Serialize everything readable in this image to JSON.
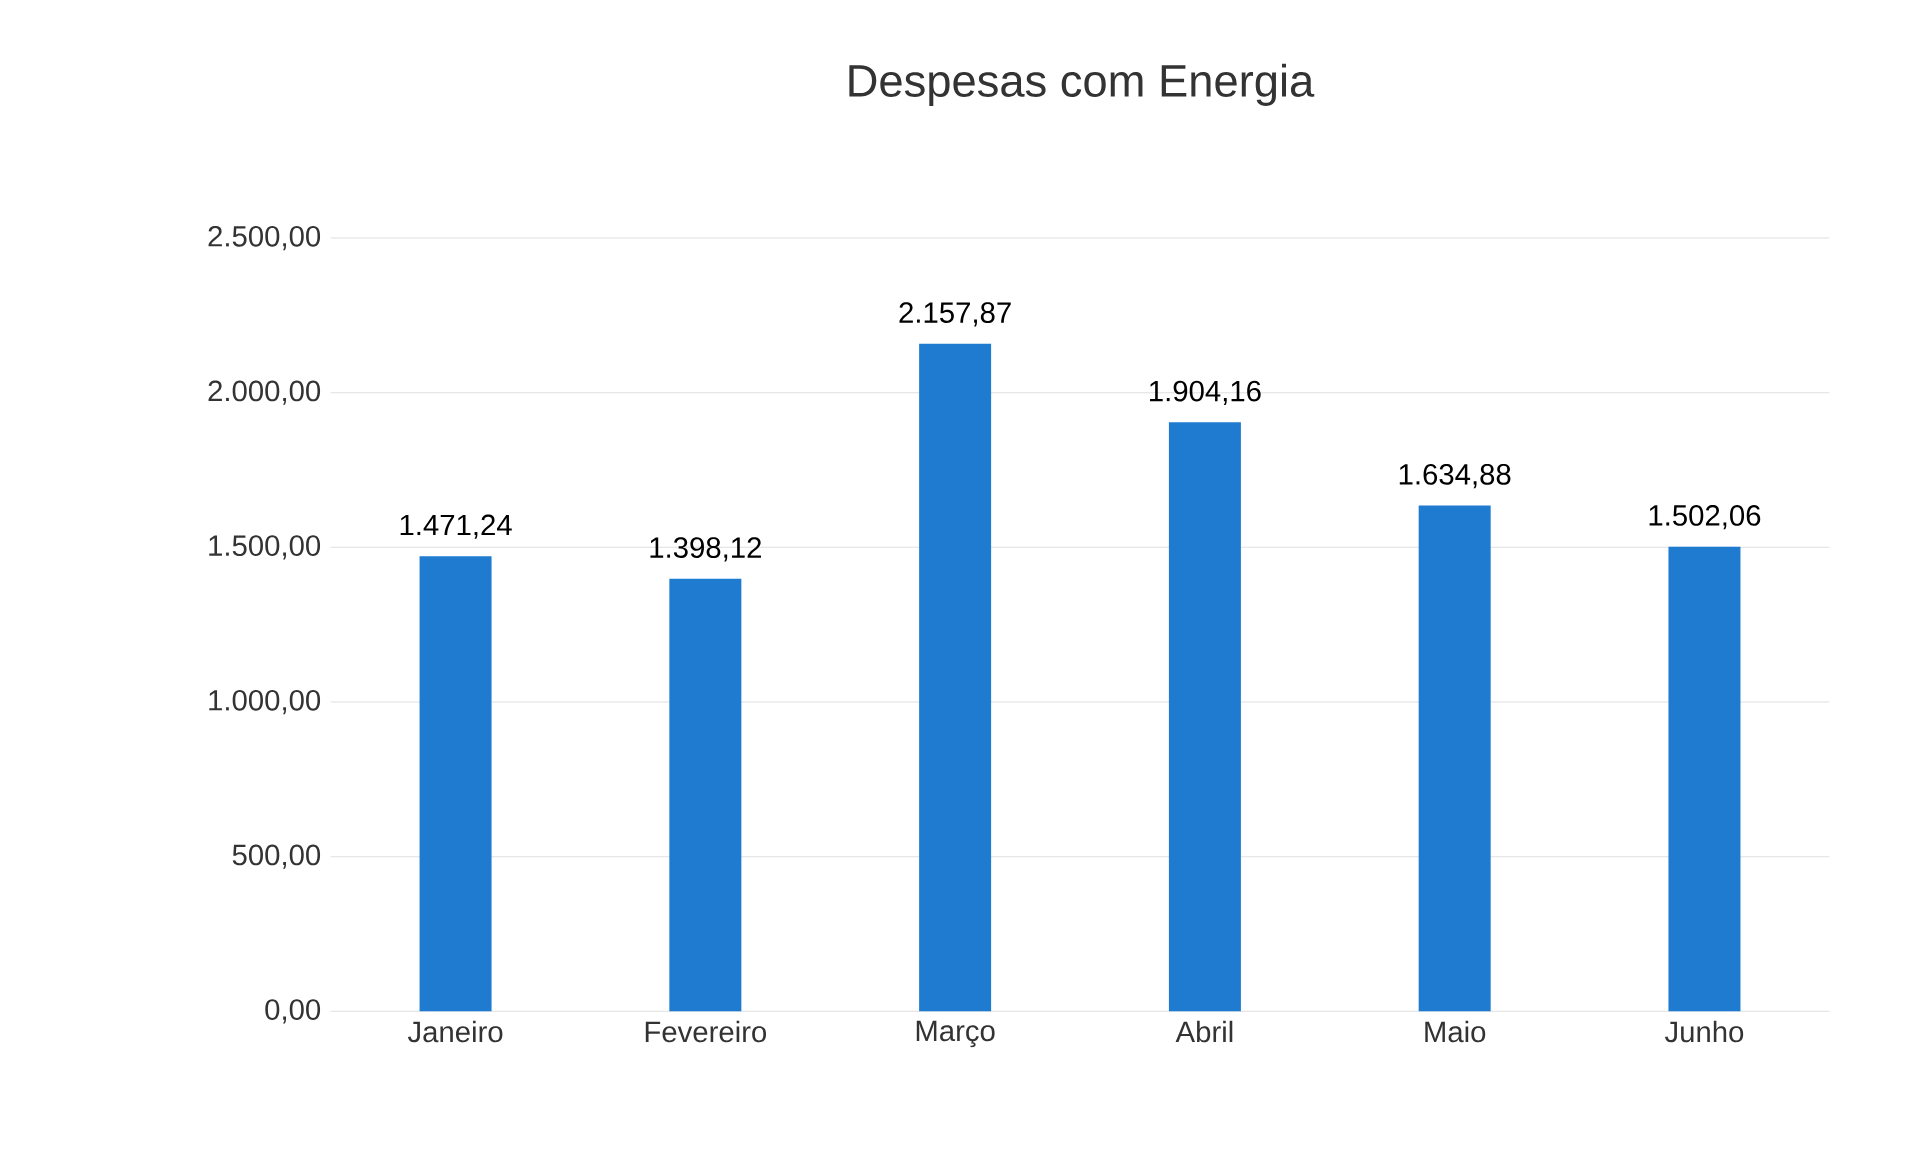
{
  "chart_data": {
    "type": "bar",
    "title": "Despesas com Energia",
    "categories": [
      "Janeiro",
      "Fevereiro",
      "Março",
      "Abril",
      "Maio",
      "Junho"
    ],
    "values": [
      1471.24,
      1398.12,
      2157.87,
      1904.16,
      1634.88,
      1502.06
    ],
    "value_labels": [
      "1.471,24",
      "1.398,12",
      "2.157,87",
      "1.904,16",
      "1.634,88",
      "1.502,06"
    ],
    "color": "#1e7bd0",
    "ylim": [
      0,
      2500
    ],
    "yticks": [
      {
        "value": 0,
        "label": "0,00"
      },
      {
        "value": 500,
        "label": "500,00"
      },
      {
        "value": 1000,
        "label": "1.000,00"
      },
      {
        "value": 1500,
        "label": "1.500,00"
      },
      {
        "value": 2000,
        "label": "2.000,00"
      },
      {
        "value": 2500,
        "label": "2.500,00"
      }
    ],
    "grid": "y"
  }
}
